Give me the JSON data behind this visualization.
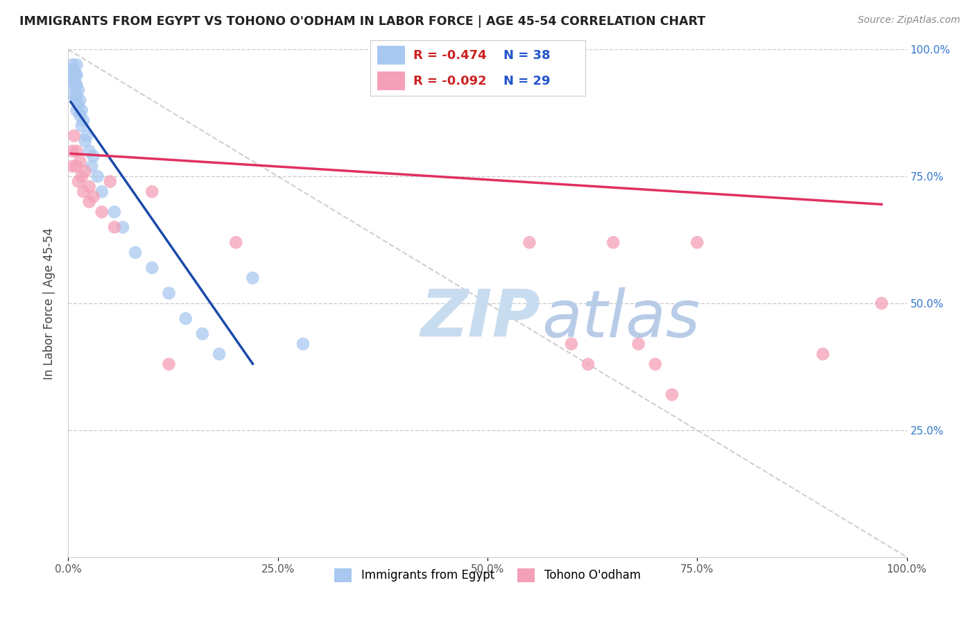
{
  "title": "IMMIGRANTS FROM EGYPT VS TOHONO O'ODHAM IN LABOR FORCE | AGE 45-54 CORRELATION CHART",
  "source": "Source: ZipAtlas.com",
  "ylabel": "In Labor Force | Age 45-54",
  "xlim": [
    0.0,
    1.0
  ],
  "ylim": [
    0.0,
    1.0
  ],
  "xticks": [
    0.0,
    0.25,
    0.5,
    0.75,
    1.0
  ],
  "xtick_labels": [
    "0.0%",
    "25.0%",
    "50.0%",
    "75.0%",
    "100.0%"
  ],
  "ytick_labels_right": [
    "100.0%",
    "75.0%",
    "50.0%",
    "25.0%"
  ],
  "blue_label": "Immigrants from Egypt",
  "pink_label": "Tohono O'odham",
  "blue_R": "-0.474",
  "blue_N": "38",
  "pink_R": "-0.092",
  "pink_N": "29",
  "blue_color": "#a8c8f0",
  "pink_color": "#f4a0b8",
  "blue_line_color": "#1a4aaa",
  "pink_line_color": "#e03060",
  "watermark_zip_color": "#c8dcf0",
  "watermark_atlas_color": "#b8cce8",
  "blue_x": [
    0.005,
    0.005,
    0.005,
    0.007,
    0.007,
    0.007,
    0.009,
    0.009,
    0.009,
    0.01,
    0.01,
    0.01,
    0.01,
    0.01,
    0.012,
    0.012,
    0.014,
    0.014,
    0.016,
    0.016,
    0.018,
    0.02,
    0.022,
    0.025,
    0.028,
    0.03,
    0.035,
    0.04,
    0.055,
    0.065,
    0.08,
    0.1,
    0.12,
    0.14,
    0.16,
    0.18,
    0.22,
    0.28
  ],
  "blue_y": [
    0.97,
    0.95,
    0.93,
    0.96,
    0.94,
    0.91,
    0.95,
    0.93,
    0.9,
    0.97,
    0.95,
    0.93,
    0.91,
    0.88,
    0.92,
    0.89,
    0.9,
    0.87,
    0.88,
    0.85,
    0.86,
    0.82,
    0.83,
    0.8,
    0.77,
    0.79,
    0.75,
    0.72,
    0.68,
    0.65,
    0.6,
    0.57,
    0.52,
    0.47,
    0.44,
    0.4,
    0.55,
    0.42
  ],
  "pink_x": [
    0.005,
    0.005,
    0.007,
    0.01,
    0.01,
    0.012,
    0.014,
    0.016,
    0.018,
    0.02,
    0.025,
    0.025,
    0.03,
    0.04,
    0.05,
    0.055,
    0.1,
    0.12,
    0.2,
    0.55,
    0.6,
    0.62,
    0.65,
    0.68,
    0.7,
    0.72,
    0.75,
    0.9,
    0.97
  ],
  "pink_y": [
    0.8,
    0.77,
    0.83,
    0.8,
    0.77,
    0.74,
    0.78,
    0.75,
    0.72,
    0.76,
    0.73,
    0.7,
    0.71,
    0.68,
    0.74,
    0.65,
    0.72,
    0.38,
    0.62,
    0.62,
    0.42,
    0.38,
    0.62,
    0.42,
    0.38,
    0.32,
    0.62,
    0.4,
    0.5
  ],
  "blue_line_x0": 0.003,
  "blue_line_x1": 0.22,
  "pink_line_x0": 0.003,
  "pink_line_x1": 0.97,
  "pink_line_y0": 0.795,
  "pink_line_y1": 0.695,
  "grid_color": "#cccccc",
  "background_color": "#ffffff"
}
